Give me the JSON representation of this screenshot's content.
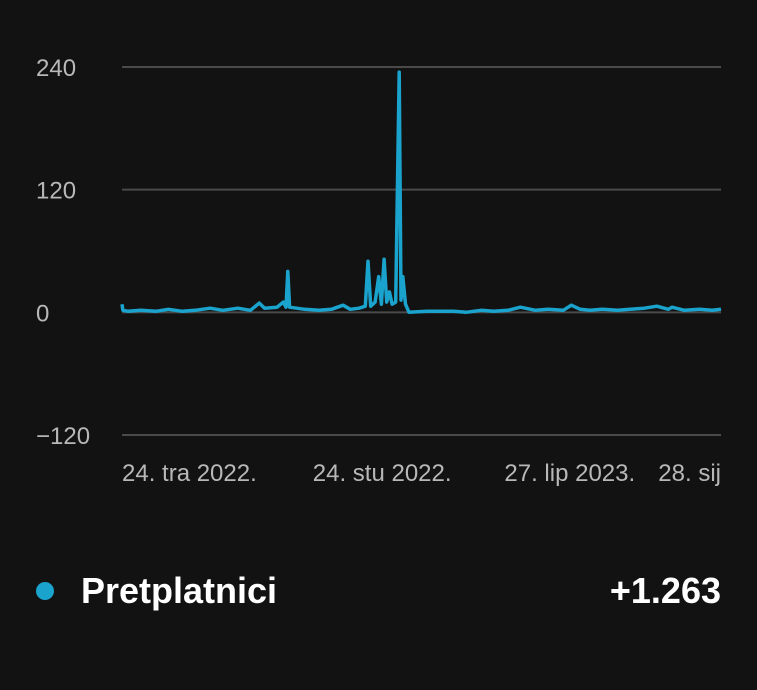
{
  "chart_data": {
    "type": "line",
    "title": "",
    "xlabel": "",
    "ylabel": "",
    "ylim": [
      -120,
      240
    ],
    "y_ticks": [
      "240",
      "120",
      "0",
      "−120"
    ],
    "y_tick_values": [
      240,
      120,
      0,
      -120
    ],
    "x_ticks": [
      {
        "label": "24. tra 2022.",
        "date": "2022-04-24"
      },
      {
        "label": "24. stu 2022.",
        "date": "2022-11-24"
      },
      {
        "label": "27. lip 2023.",
        "date": "2023-06-27"
      },
      {
        "label": "28. sij",
        "date": "2024-01-28"
      }
    ],
    "x_range": [
      "2022-04-24",
      "2024-02-25"
    ],
    "grid": true,
    "series": [
      {
        "name": "Pretplatnici",
        "color": "#1aa3cc",
        "points": [
          [
            "2022-04-24",
            8
          ],
          [
            "2022-04-25",
            2
          ],
          [
            "2022-05-01",
            1
          ],
          [
            "2022-05-15",
            2
          ],
          [
            "2022-06-01",
            1
          ],
          [
            "2022-06-15",
            3
          ],
          [
            "2022-07-01",
            1
          ],
          [
            "2022-07-15",
            2
          ],
          [
            "2022-08-01",
            4
          ],
          [
            "2022-08-15",
            2
          ],
          [
            "2022-09-01",
            4
          ],
          [
            "2022-09-15",
            2
          ],
          [
            "2022-09-25",
            9
          ],
          [
            "2022-10-01",
            4
          ],
          [
            "2022-10-15",
            5
          ],
          [
            "2022-10-22",
            10
          ],
          [
            "2022-10-25",
            5
          ],
          [
            "2022-10-27",
            40
          ],
          [
            "2022-10-29",
            5
          ],
          [
            "2022-11-15",
            3
          ],
          [
            "2022-12-01",
            2
          ],
          [
            "2022-12-15",
            3
          ],
          [
            "2022-12-28",
            7
          ],
          [
            "2023-01-05",
            3
          ],
          [
            "2023-01-15",
            4
          ],
          [
            "2023-01-22",
            6
          ],
          [
            "2023-01-25",
            50
          ],
          [
            "2023-01-28",
            6
          ],
          [
            "2023-02-02",
            10
          ],
          [
            "2023-02-06",
            35
          ],
          [
            "2023-02-09",
            8
          ],
          [
            "2023-02-12",
            52
          ],
          [
            "2023-02-15",
            10
          ],
          [
            "2023-02-18",
            20
          ],
          [
            "2023-02-21",
            8
          ],
          [
            "2023-02-25",
            10
          ],
          [
            "2023-03-01",
            235
          ],
          [
            "2023-03-03",
            12
          ],
          [
            "2023-03-05",
            35
          ],
          [
            "2023-03-08",
            8
          ],
          [
            "2023-03-12",
            0
          ],
          [
            "2023-04-01",
            1
          ],
          [
            "2023-05-01",
            1
          ],
          [
            "2023-05-15",
            0
          ],
          [
            "2023-06-01",
            2
          ],
          [
            "2023-06-15",
            1
          ],
          [
            "2023-07-01",
            2
          ],
          [
            "2023-07-15",
            5
          ],
          [
            "2023-08-01",
            2
          ],
          [
            "2023-08-15",
            3
          ],
          [
            "2023-09-01",
            2
          ],
          [
            "2023-09-10",
            7
          ],
          [
            "2023-09-20",
            3
          ],
          [
            "2023-10-01",
            2
          ],
          [
            "2023-10-15",
            3
          ],
          [
            "2023-11-01",
            2
          ],
          [
            "2023-11-15",
            3
          ],
          [
            "2023-12-01",
            4
          ],
          [
            "2023-12-15",
            6
          ],
          [
            "2023-12-28",
            3
          ],
          [
            "2024-01-01",
            5
          ],
          [
            "2024-01-15",
            2
          ],
          [
            "2024-02-01",
            3
          ],
          [
            "2024-02-15",
            2
          ],
          [
            "2024-02-25",
            3
          ]
        ]
      }
    ]
  },
  "legend": {
    "label": "Pretplatnici",
    "value": "+1.263",
    "dot_color": "#1aa3cc"
  }
}
